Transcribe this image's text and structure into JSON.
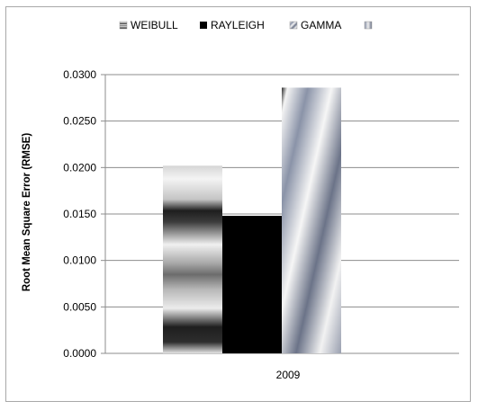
{
  "chart_data": {
    "type": "bar",
    "title": "",
    "xlabel": "",
    "ylabel": "Root Mean Square Error (RMSE)",
    "categories": [
      "2009"
    ],
    "series": [
      {
        "name": "WEIBULL",
        "values": [
          0.0202
        ]
      },
      {
        "name": "RAYLEIGH",
        "values": [
          0.0148
        ]
      },
      {
        "name": "GAMMA",
        "values": [
          0.0286
        ]
      }
    ],
    "legend_extra_marker": true,
    "ylim": [
      0,
      0.03
    ],
    "yticks": [
      "0.0000",
      "0.0050",
      "0.0100",
      "0.0150",
      "0.0200",
      "0.0250",
      "0.0300"
    ],
    "grid": true,
    "legend_position": "top"
  }
}
